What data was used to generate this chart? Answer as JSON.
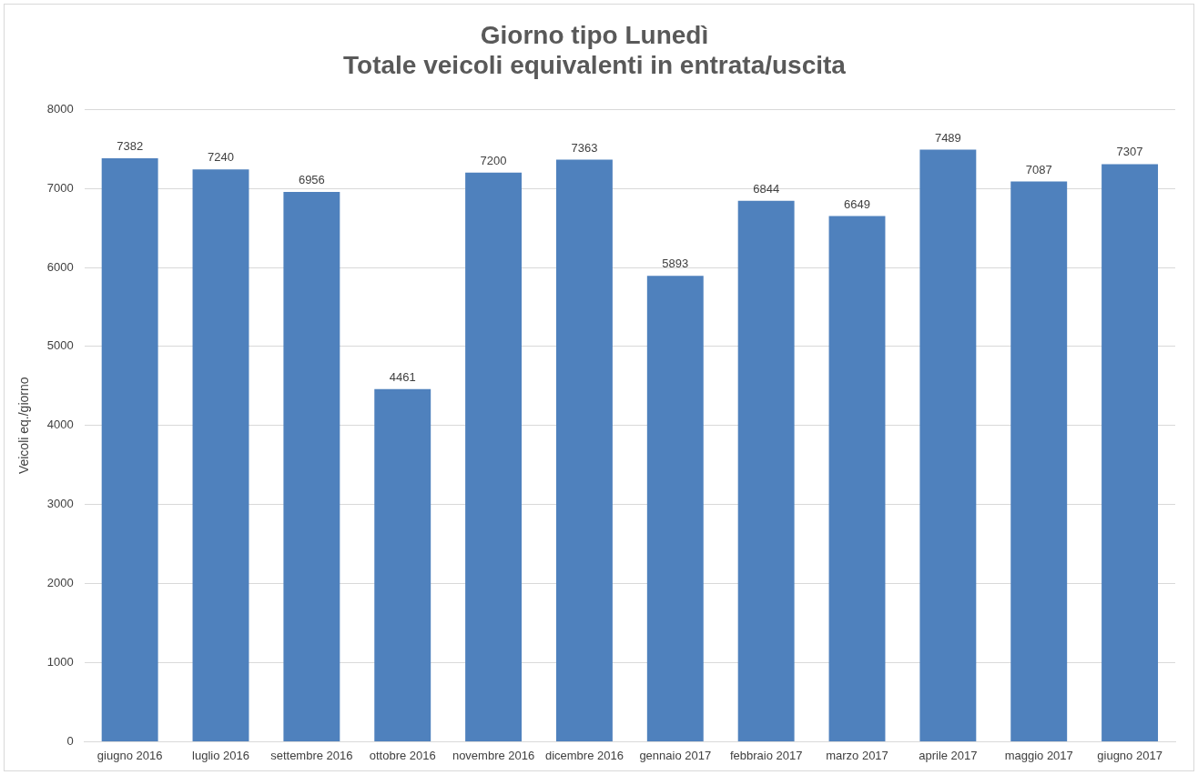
{
  "chart_data": {
    "type": "bar",
    "title": "Giorno tipo Lunedì\nTotale veicoli equivalenti in entrata/uscita",
    "ylabel": "Veicoli eq./giorno",
    "categories": [
      "giugno 2016",
      "luglio 2016",
      "settembre 2016",
      "ottobre 2016",
      "novembre 2016",
      "dicembre 2016",
      "gennaio 2017",
      "febbraio 2017",
      "marzo 2017",
      "aprile 2017",
      "maggio 2017",
      "giugno 2017"
    ],
    "values": [
      7382,
      7240,
      6956,
      4461,
      7200,
      7363,
      5893,
      6844,
      6649,
      7489,
      7087,
      7307
    ],
    "color": "#4f81bd",
    "ylim": [
      0,
      8000
    ],
    "yticks": [
      0,
      1000,
      2000,
      3000,
      4000,
      5000,
      6000,
      7000,
      8000
    ],
    "grid": "y",
    "data_labels": true,
    "legend": false
  }
}
